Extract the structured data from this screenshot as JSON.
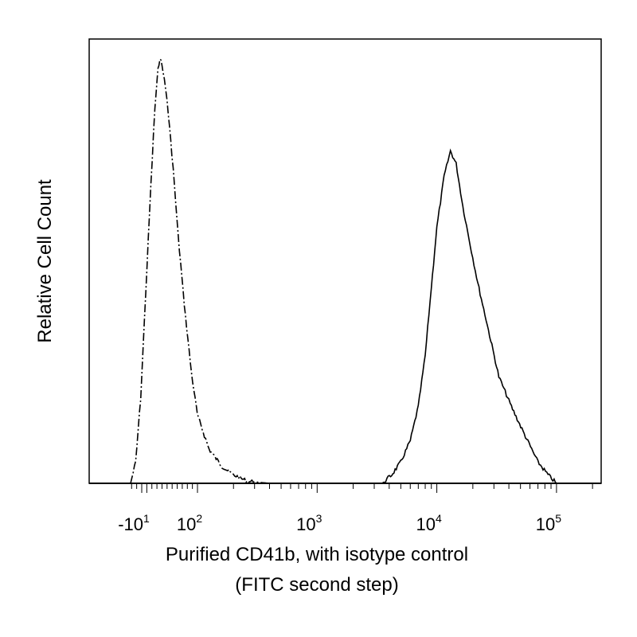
{
  "chart_data": {
    "type": "line",
    "title": "",
    "xlabel": "Purified CD41b, with isotype control",
    "xlabel_line2": "(FITC second step)",
    "ylabel": "Relative Cell Count",
    "x_scale": "biexponential",
    "xlim": [
      -40,
      250000
    ],
    "ylim": [
      0,
      1
    ],
    "y_ticks_shown": false,
    "grid": false,
    "x_tick_labels": [
      {
        "value": -10,
        "base": "-10",
        "exp": "1"
      },
      {
        "value": 100,
        "base": "10",
        "exp": "2"
      },
      {
        "value": 1000,
        "base": "10",
        "exp": "3"
      },
      {
        "value": 10000,
        "base": "10",
        "exp": "4"
      },
      {
        "value": 100000,
        "base": "10",
        "exp": "5"
      }
    ],
    "series": [
      {
        "style": "dash-dot",
        "points": [
          [
            -32,
            0.0
          ],
          [
            -22,
            0.05
          ],
          [
            -12,
            0.2
          ],
          [
            -2,
            0.45
          ],
          [
            8,
            0.7
          ],
          [
            16,
            0.88
          ],
          [
            22,
            0.97
          ],
          [
            26,
            1.0
          ],
          [
            32,
            0.97
          ],
          [
            40,
            0.9
          ],
          [
            52,
            0.74
          ],
          [
            62,
            0.58
          ],
          [
            74,
            0.42
          ],
          [
            88,
            0.26
          ],
          [
            100,
            0.16
          ],
          [
            125,
            0.08
          ],
          [
            160,
            0.04
          ],
          [
            200,
            0.02
          ],
          [
            260,
            0.005
          ],
          [
            400,
            0.0
          ],
          [
            1000,
            0.0
          ],
          [
            3500,
            0.0
          ]
        ]
      },
      {
        "style": "solid",
        "points": [
          [
            3500,
            0.0
          ],
          [
            4200,
            0.02
          ],
          [
            5000,
            0.05
          ],
          [
            6000,
            0.1
          ],
          [
            7000,
            0.18
          ],
          [
            8000,
            0.3
          ],
          [
            9000,
            0.46
          ],
          [
            10000,
            0.6
          ],
          [
            11500,
            0.72
          ],
          [
            13000,
            0.78
          ],
          [
            14500,
            0.75
          ],
          [
            16500,
            0.65
          ],
          [
            19000,
            0.56
          ],
          [
            22000,
            0.47
          ],
          [
            27000,
            0.36
          ],
          [
            33000,
            0.25
          ],
          [
            42000,
            0.18
          ],
          [
            55000,
            0.11
          ],
          [
            70000,
            0.05
          ],
          [
            85000,
            0.02
          ],
          [
            100000,
            0.0
          ]
        ]
      }
    ]
  }
}
